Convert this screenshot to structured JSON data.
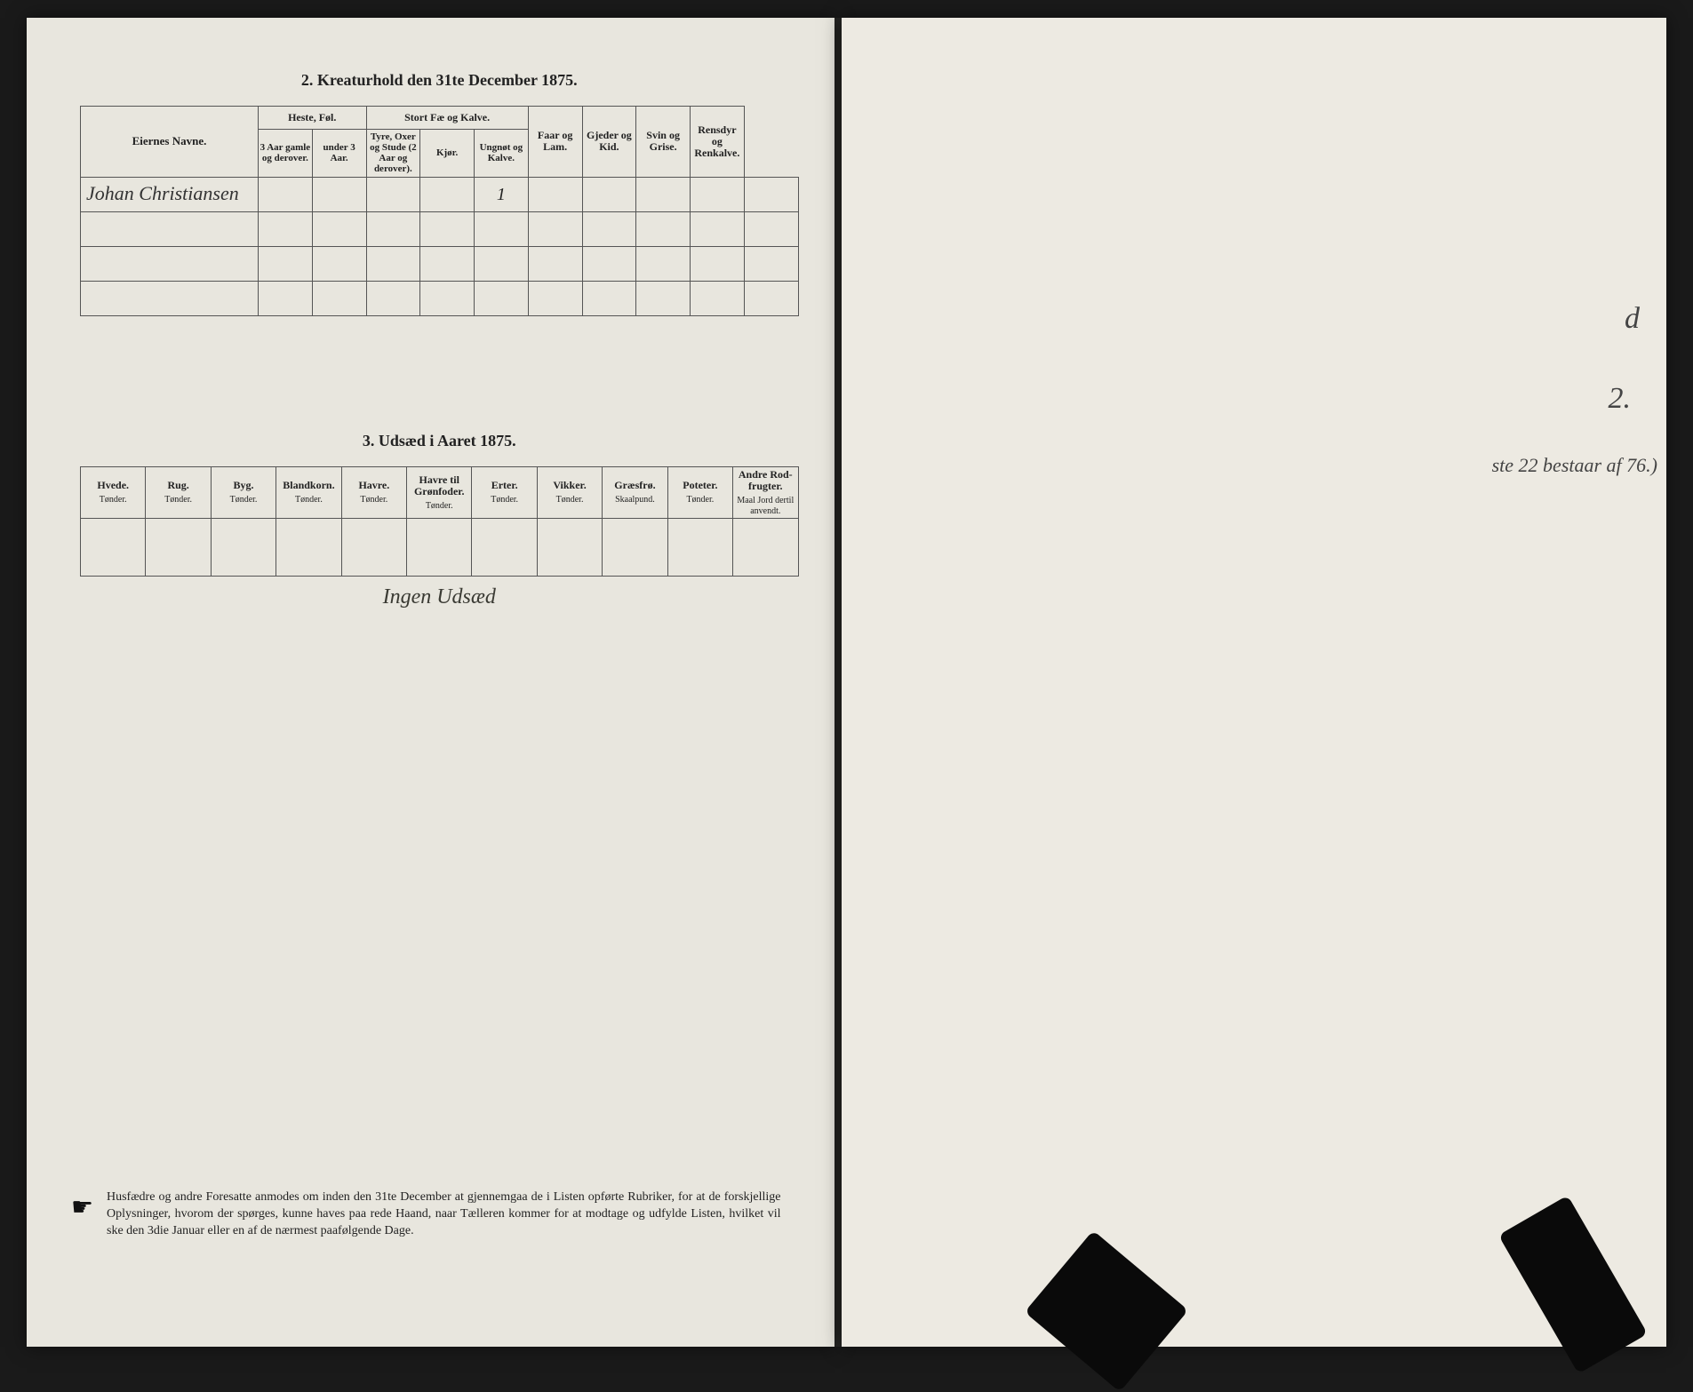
{
  "section2": {
    "title": "2.  Kreaturhold den 31te December 1875.",
    "name_col_header": "Eiernes Navne.",
    "groups": {
      "heste": "Heste, Føl.",
      "stortfae": "Stort Fæ og Kalve.",
      "faar": "Faar og Lam.",
      "gjeder": "Gjeder og Kid.",
      "svin": "Svin og Grise.",
      "rensdyr": "Rensdyr og Renkalve."
    },
    "subheaders": {
      "heste_a": "3 Aar gamle og derover.",
      "heste_b": "under 3 Aar.",
      "stort_a": "Tyre, Oxer og Stude (2 Aar og derover).",
      "stort_b": "Kjør.",
      "stort_c": "Ungnøt og Kalve."
    },
    "rows": [
      {
        "name": "Johan Christiansen",
        "values": [
          "",
          "",
          "",
          "",
          "1",
          "",
          "",
          "",
          "",
          ""
        ]
      },
      {
        "name": "",
        "values": [
          "",
          "",
          "",
          "",
          "",
          "",
          "",
          "",
          "",
          ""
        ]
      },
      {
        "name": "",
        "values": [
          "",
          "",
          "",
          "",
          "",
          "",
          "",
          "",
          "",
          ""
        ]
      },
      {
        "name": "",
        "values": [
          "",
          "",
          "",
          "",
          "",
          "",
          "",
          "",
          "",
          ""
        ]
      }
    ]
  },
  "section3": {
    "title": "3.  Udsæd i Aaret 1875.",
    "columns": [
      {
        "hdr": "Hvede.",
        "sub": "Tønder."
      },
      {
        "hdr": "Rug.",
        "sub": "Tønder."
      },
      {
        "hdr": "Byg.",
        "sub": "Tønder."
      },
      {
        "hdr": "Blandkorn.",
        "sub": "Tønder."
      },
      {
        "hdr": "Havre.",
        "sub": "Tønder."
      },
      {
        "hdr": "Havre til Grønfoder.",
        "sub": "Tønder."
      },
      {
        "hdr": "Erter.",
        "sub": "Tønder."
      },
      {
        "hdr": "Vikker.",
        "sub": "Tønder."
      },
      {
        "hdr": "Græsfrø.",
        "sub": "Skaalpund."
      },
      {
        "hdr": "Poteter.",
        "sub": "Tønder."
      },
      {
        "hdr": "Andre Rod-frugter.",
        "sub": "Maal Jord dertil anvendt."
      }
    ],
    "hand_note": "Ingen Udsæd"
  },
  "footer": {
    "text": "Husfædre og andre Foresatte anmodes om inden den 31te December at gjennemgaa de i Listen opførte Rubriker, for at de forskjellige Oplysninger, hvorom der spørges, kunne haves paa rede Haand, naar Tælleren kommer for at modtage og udfylde Listen, hvilket vil ske den 3die Januar eller en af de nærmest paafølgende Dage."
  },
  "right_page": {
    "scrawl1": "d",
    "scrawl2": "2.",
    "scrawl3": "ste 22 bestaar af\n76.)"
  },
  "colors": {
    "page_bg": "#e8e6de",
    "page_bg_right": "#edeae2",
    "ink": "#222222",
    "border": "#555555",
    "outer_bg": "#1a1a1a"
  }
}
